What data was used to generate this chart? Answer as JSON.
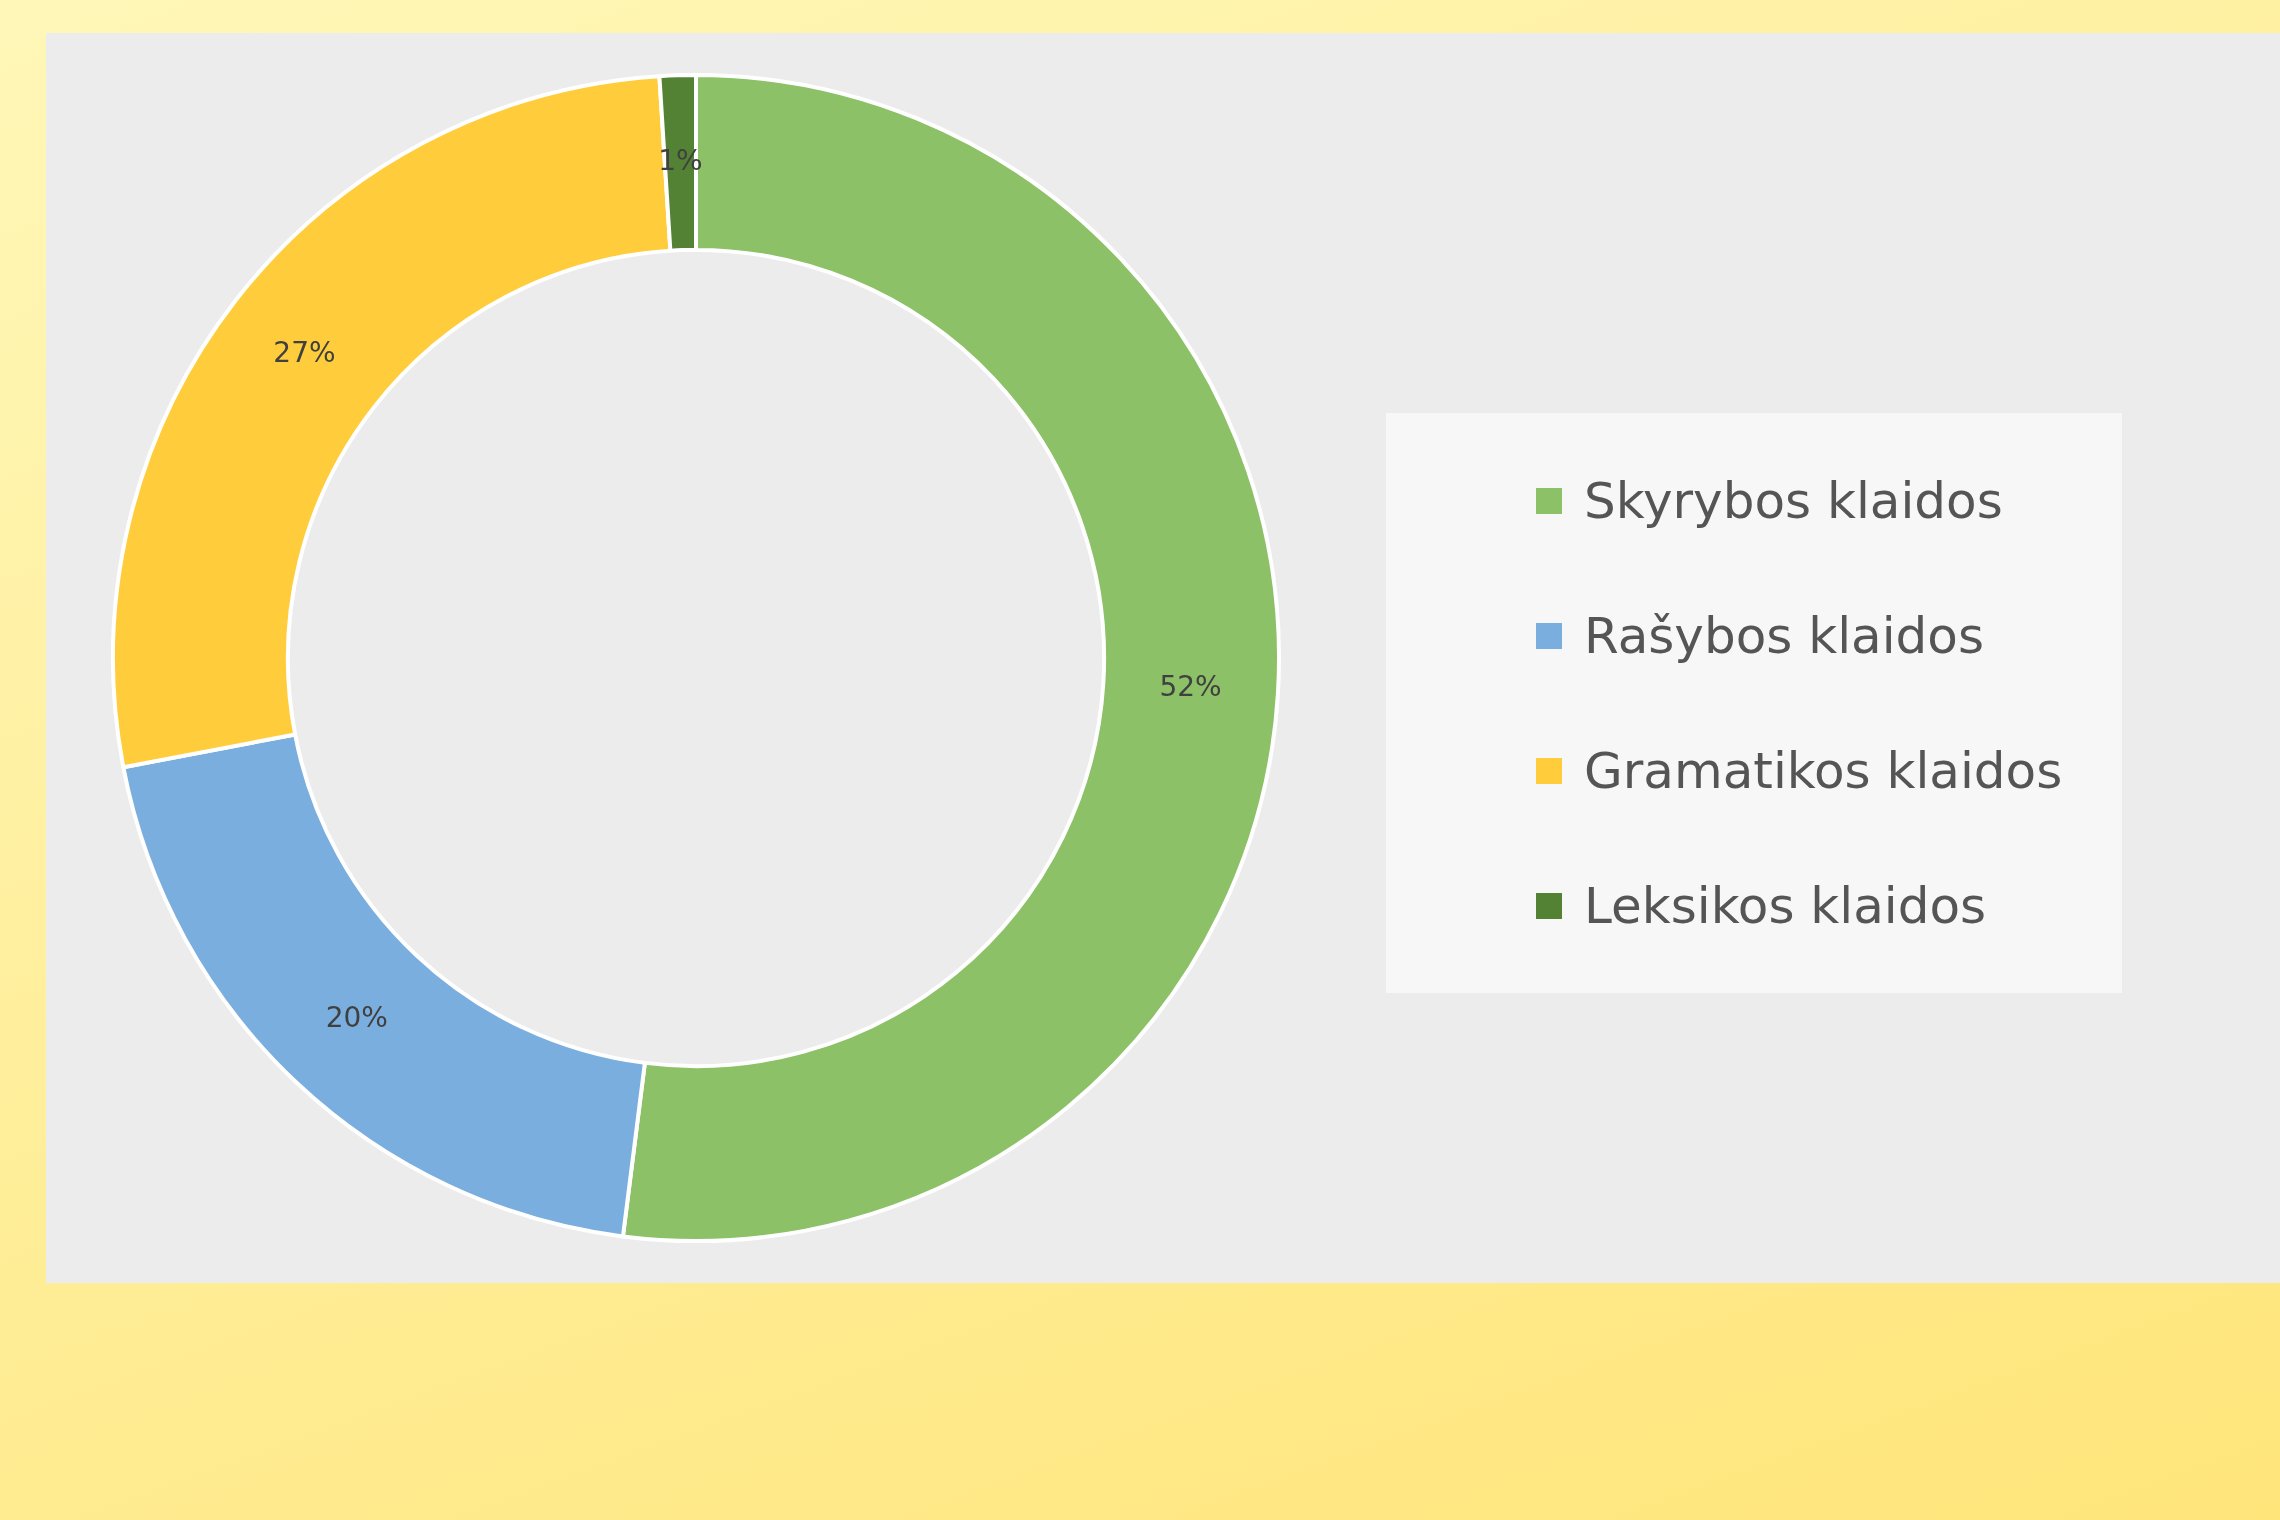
{
  "chart_data": {
    "type": "donut",
    "categories": [
      "Skyrybos klaidos",
      "Rašybos klaidos",
      "Gramatikos klaidos",
      "Leksikos klaidos"
    ],
    "values": [
      52,
      20,
      27,
      1
    ],
    "colors": [
      "#8cc168",
      "#7aaede",
      "#ffcd3c",
      "#548235"
    ],
    "value_labels": [
      "52%",
      "20%",
      "27%",
      "1%"
    ],
    "legend": "right"
  }
}
